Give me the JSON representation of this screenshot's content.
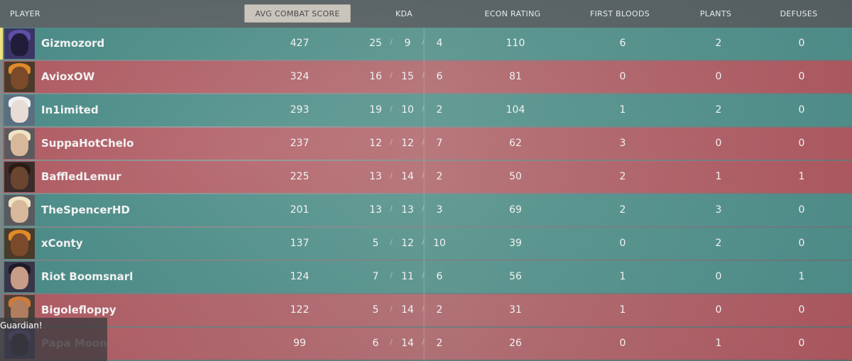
{
  "headers": {
    "player": "PLAYER",
    "acs": "AVG COMBAT SCORE",
    "kda": "KDA",
    "econ": "ECON RATING",
    "first_bloods": "FIRST BLOODS",
    "plants": "PLANTS",
    "defuses": "DEFUSES"
  },
  "players": [
    {
      "name": "Gizmozord",
      "acs": "427",
      "k": "25",
      "d": "9",
      "a": "4",
      "econ": "110",
      "fb": "6",
      "plants": "2",
      "defuses": "0",
      "team": "ally"
    },
    {
      "name": "AvioxOW",
      "acs": "324",
      "k": "16",
      "d": "15",
      "a": "6",
      "econ": "81",
      "fb": "0",
      "plants": "0",
      "defuses": "0",
      "team": "enemy"
    },
    {
      "name": "In1imited",
      "acs": "293",
      "k": "19",
      "d": "10",
      "a": "2",
      "econ": "104",
      "fb": "1",
      "plants": "2",
      "defuses": "0",
      "team": "ally"
    },
    {
      "name": "SuppaHotChelo",
      "acs": "237",
      "k": "12",
      "d": "12",
      "a": "7",
      "econ": "62",
      "fb": "3",
      "plants": "0",
      "defuses": "0",
      "team": "enemy"
    },
    {
      "name": "BaffledLemur",
      "acs": "225",
      "k": "13",
      "d": "14",
      "a": "2",
      "econ": "50",
      "fb": "2",
      "plants": "1",
      "defuses": "1",
      "team": "enemy"
    },
    {
      "name": "TheSpencerHD",
      "acs": "201",
      "k": "13",
      "d": "13",
      "a": "3",
      "econ": "69",
      "fb": "2",
      "plants": "3",
      "defuses": "0",
      "team": "ally"
    },
    {
      "name": "xConty",
      "acs": "137",
      "k": "5",
      "d": "12",
      "a": "10",
      "econ": "39",
      "fb": "0",
      "plants": "2",
      "defuses": "0",
      "team": "ally"
    },
    {
      "name": "Riot Boomsnarl",
      "acs": "124",
      "k": "7",
      "d": "11",
      "a": "6",
      "econ": "56",
      "fb": "1",
      "plants": "0",
      "defuses": "1",
      "team": "ally"
    },
    {
      "name": "Bigolefloppy",
      "acs": "122",
      "k": "5",
      "d": "14",
      "a": "2",
      "econ": "31",
      "fb": "1",
      "plants": "0",
      "defuses": "0",
      "team": "enemy"
    },
    {
      "name": "Papa Moon",
      "acs": "99",
      "k": "6",
      "d": "14",
      "a": "2",
      "econ": "26",
      "fb": "0",
      "plants": "1",
      "defuses": "0",
      "team": "enemy"
    }
  ],
  "tooltip": {
    "text": "Guardian!"
  },
  "colors": {
    "ally": "#3e8c87",
    "enemy": "#ba525c",
    "selected_header": "#c9c5bd"
  },
  "agent_icons": [
    "omen-icon",
    "raze-icon",
    "jett-icon",
    "sova-icon",
    "phoenix-icon",
    "sova-icon",
    "raze-icon",
    "reyna-icon",
    "brimstone-icon",
    "omen-icon"
  ]
}
